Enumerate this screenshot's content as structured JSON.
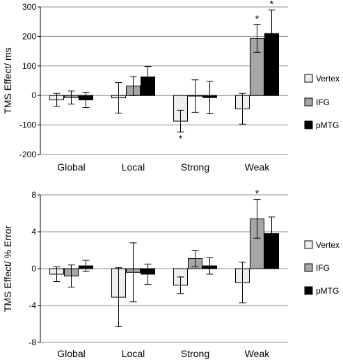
{
  "chart_data": [
    {
      "type": "bar",
      "ylabel": "TMS Effect/ ms",
      "yticks": [
        "300",
        "200",
        "100",
        "0",
        "-100",
        "-200"
      ],
      "ylim": [
        -200,
        300
      ],
      "categories": [
        "Global",
        "Local",
        "Strong",
        "Weak"
      ],
      "series": [
        {
          "name": "Vertex",
          "values": [
            -15,
            -8,
            -87,
            -45
          ],
          "errors": [
            22,
            52,
            37,
            52
          ],
          "color": "#eeeeee"
        },
        {
          "name": "IFG",
          "values": [
            -7,
            32,
            -2,
            193
          ],
          "errors": [
            22,
            32,
            55,
            47
          ],
          "color": "#a6a6a6"
        },
        {
          "name": "pMTG",
          "values": [
            -15,
            63,
            -7,
            210
          ],
          "errors": [
            26,
            35,
            55,
            80
          ],
          "color": "#000000"
        }
      ],
      "annotations": [
        {
          "category": "Strong",
          "series": "Vertex",
          "text": "*"
        },
        {
          "category": "Weak",
          "series": "IFG",
          "text": "*"
        },
        {
          "category": "Weak",
          "series": "pMTG",
          "text": "*"
        }
      ],
      "legend_position": "right",
      "grid": "horizontal"
    },
    {
      "type": "bar",
      "ylabel": "TMS Effect/ % Error",
      "yticks": [
        "8",
        "4",
        "0",
        "-4",
        "-8"
      ],
      "ylim": [
        -8,
        8
      ],
      "categories": [
        "Global",
        "Local",
        "Strong",
        "Weak"
      ],
      "series": [
        {
          "name": "Vertex",
          "values": [
            -0.6,
            -3.1,
            -1.8,
            -1.5
          ],
          "errors": [
            0.8,
            3.2,
            0.9,
            2.2
          ],
          "color": "#eeeeee"
        },
        {
          "name": "IFG",
          "values": [
            -0.8,
            -0.4,
            1.1,
            5.4
          ],
          "errors": [
            1.2,
            3.2,
            0.9,
            2.1
          ],
          "color": "#a6a6a6"
        },
        {
          "name": "pMTG",
          "values": [
            0.3,
            -0.6,
            0.3,
            3.8
          ],
          "errors": [
            0.6,
            1.1,
            0.9,
            1.8
          ],
          "color": "#000000"
        }
      ],
      "annotations": [
        {
          "category": "Weak",
          "series": "IFG",
          "text": "*"
        }
      ],
      "legend_position": "right",
      "grid": "horizontal"
    }
  ]
}
